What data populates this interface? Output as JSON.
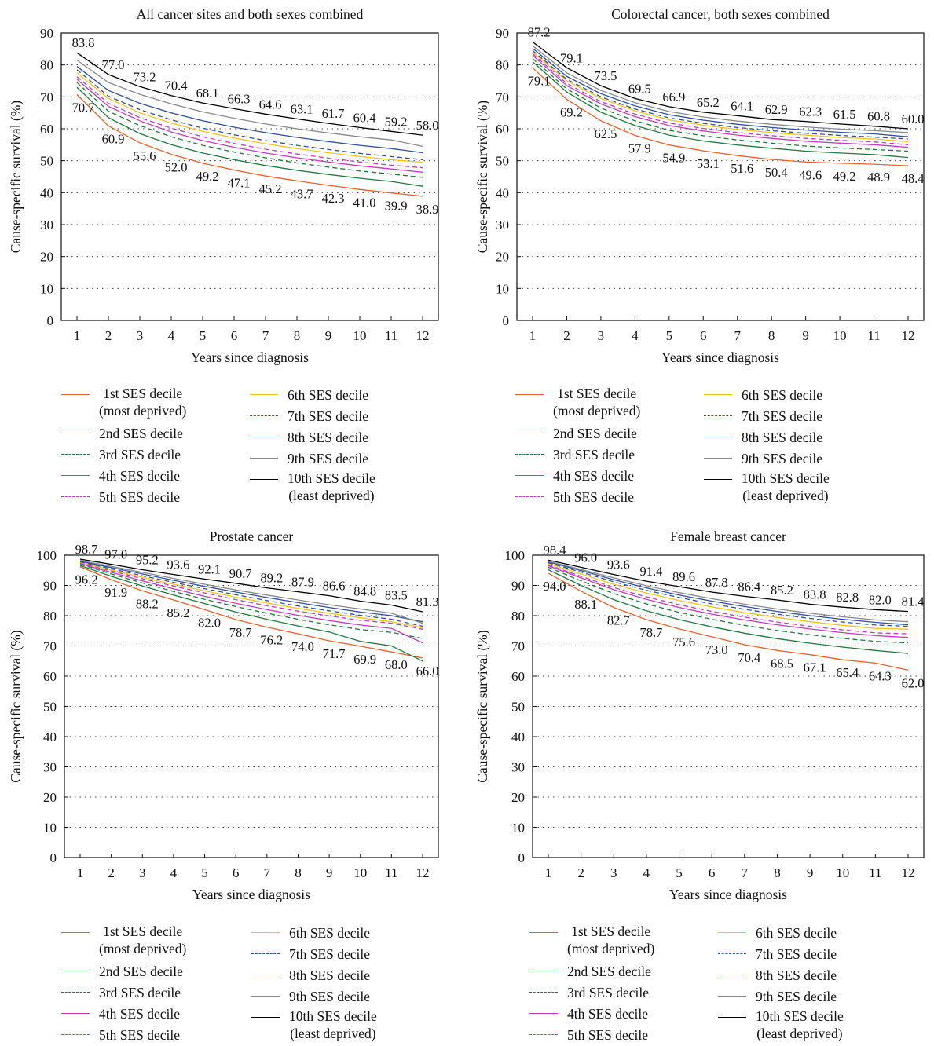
{
  "legend_items": [
    {
      "text": "1st SES decile",
      "sub": "(most deprived)",
      "color": "#e8612c",
      "dash": false
    },
    {
      "text": "2nd SES decile",
      "sub": "",
      "color": "#1f7a3c",
      "dash": false
    },
    {
      "text": "3rd SES decile",
      "sub": "",
      "color": "#1f7a3c",
      "dash": true
    },
    {
      "text": "4th SES decile",
      "sub": "",
      "color": "#c13cc1",
      "dash": false
    },
    {
      "text": "5th SES decile",
      "sub": "",
      "color": "#c13cc1",
      "dash": true
    },
    {
      "text": "6th SES decile",
      "sub": "",
      "color": "#f0c419",
      "dash": false
    },
    {
      "text": "7th SES decile",
      "sub": "",
      "color": "#2f4fa0",
      "dash": true
    },
    {
      "text": "8th SES decile",
      "sub": "",
      "color": "#2f4fa0",
      "dash": false
    },
    {
      "text": "9th SES decile",
      "sub": "",
      "color": "#8a8a8a",
      "dash": false
    },
    {
      "text": "10th SES decile",
      "sub": "(least deprived)",
      "color": "#000000",
      "dash": false
    }
  ],
  "chart_data": [
    {
      "type": "line",
      "title": "All cancer sites and both sexes combined",
      "xlabel": "Years since diagnosis",
      "ylabel": "Cause-specific survival (%)",
      "x": [
        1,
        2,
        3,
        4,
        5,
        6,
        7,
        8,
        9,
        10,
        11,
        12
      ],
      "ylim": [
        0,
        90
      ],
      "yticks": [
        0,
        10,
        20,
        30,
        40,
        50,
        60,
        70,
        80,
        90
      ],
      "grid": "horizontal dotted",
      "labeled_series": [
        "1st SES decile",
        "10th SES decile"
      ],
      "series": [
        {
          "name": "1st SES decile",
          "values": [
            70.7,
            60.9,
            55.6,
            52.0,
            49.2,
            47.1,
            45.2,
            43.7,
            42.3,
            41.0,
            39.9,
            38.9
          ]
        },
        {
          "name": "2nd SES decile",
          "values": [
            73.0,
            63.5,
            58.5,
            55.0,
            52.4,
            50.3,
            48.5,
            47.0,
            45.7,
            44.5,
            43.5,
            42.0
          ]
        },
        {
          "name": "3rd SES decile",
          "values": [
            74.5,
            65.5,
            61.0,
            57.5,
            54.8,
            52.7,
            50.9,
            49.3,
            48.0,
            46.8,
            45.8,
            44.8
          ]
        },
        {
          "name": "4th SES decile",
          "values": [
            75.5,
            67.0,
            62.5,
            59.0,
            56.3,
            54.2,
            52.4,
            50.9,
            49.6,
            48.4,
            47.4,
            46.4
          ]
        },
        {
          "name": "5th SES decile",
          "values": [
            76.3,
            68.0,
            63.5,
            60.2,
            57.5,
            55.4,
            53.6,
            52.1,
            50.8,
            49.6,
            48.6,
            47.8
          ]
        },
        {
          "name": "6th SES decile",
          "values": [
            77.5,
            69.5,
            65.0,
            61.8,
            59.2,
            57.1,
            55.3,
            53.8,
            52.5,
            51.3,
            50.3,
            49.5
          ]
        },
        {
          "name": "7th SES decile",
          "values": [
            78.5,
            70.2,
            66.0,
            62.8,
            60.2,
            58.1,
            56.3,
            54.8,
            53.5,
            52.3,
            51.3,
            50.3
          ]
        },
        {
          "name": "8th SES decile",
          "values": [
            79.5,
            72.0,
            68.0,
            65.0,
            62.5,
            60.5,
            58.8,
            57.3,
            56.0,
            54.8,
            53.8,
            52.5
          ]
        },
        {
          "name": "9th SES decile",
          "values": [
            81.5,
            74.5,
            70.8,
            67.8,
            65.3,
            63.3,
            61.5,
            60.0,
            58.7,
            57.5,
            56.5,
            54.5
          ]
        },
        {
          "name": "10th SES decile",
          "values": [
            83.8,
            77.0,
            73.2,
            70.4,
            68.1,
            66.3,
            64.6,
            63.1,
            61.7,
            60.4,
            59.2,
            58.0
          ]
        }
      ]
    },
    {
      "type": "line",
      "title": "Colorectal cancer, both sexes combined",
      "xlabel": "Years since diagnosis",
      "ylabel": "Cause-specific survival (%)",
      "x": [
        1,
        2,
        3,
        4,
        5,
        6,
        7,
        8,
        9,
        10,
        11,
        12
      ],
      "ylim": [
        0,
        90
      ],
      "yticks": [
        0,
        10,
        20,
        30,
        40,
        50,
        60,
        70,
        80,
        90
      ],
      "grid": "horizontal dotted",
      "labeled_series": [
        "1st SES decile",
        "10th SES decile"
      ],
      "series": [
        {
          "name": "1st SES decile",
          "values": [
            79.1,
            69.2,
            62.5,
            57.9,
            54.9,
            53.1,
            51.6,
            50.4,
            49.6,
            49.2,
            48.9,
            48.4
          ]
        },
        {
          "name": "2nd SES decile",
          "values": [
            81.0,
            71.5,
            65.2,
            61.0,
            58.0,
            56.2,
            54.9,
            53.9,
            53.0,
            52.4,
            51.9,
            51.0
          ]
        },
        {
          "name": "3rd SES decile",
          "values": [
            82.0,
            72.5,
            66.5,
            62.5,
            59.5,
            57.8,
            56.5,
            55.5,
            54.6,
            54.0,
            53.5,
            53.0
          ]
        },
        {
          "name": "4th SES decile",
          "values": [
            83.0,
            73.5,
            67.8,
            63.8,
            61.0,
            59.3,
            58.0,
            57.0,
            56.1,
            55.5,
            55.0,
            54.2
          ]
        },
        {
          "name": "5th SES decile",
          "values": [
            83.5,
            74.2,
            68.5,
            64.6,
            61.8,
            60.1,
            58.8,
            57.8,
            57.0,
            56.4,
            55.9,
            55.0
          ]
        },
        {
          "name": "6th SES decile",
          "values": [
            84.0,
            75.0,
            69.5,
            65.6,
            62.8,
            61.1,
            59.8,
            58.8,
            58.0,
            57.3,
            56.8,
            56.0
          ]
        },
        {
          "name": "7th SES decile",
          "values": [
            84.5,
            75.5,
            70.0,
            66.2,
            63.4,
            61.7,
            60.4,
            59.4,
            58.6,
            57.9,
            57.4,
            56.8
          ]
        },
        {
          "name": "8th SES decile",
          "values": [
            85.2,
            76.4,
            71.0,
            67.2,
            64.4,
            62.7,
            61.4,
            60.4,
            59.6,
            58.9,
            58.4,
            57.5
          ]
        },
        {
          "name": "9th SES decile",
          "values": [
            86.0,
            77.5,
            72.0,
            68.2,
            65.4,
            63.7,
            62.4,
            61.4,
            60.6,
            59.9,
            59.4,
            58.8
          ]
        },
        {
          "name": "10th SES decile",
          "values": [
            87.2,
            79.1,
            73.5,
            69.5,
            66.9,
            65.2,
            64.1,
            62.9,
            62.3,
            61.5,
            60.8,
            60.0
          ]
        }
      ]
    },
    {
      "type": "line",
      "title": "Prostate cancer",
      "xlabel": "Years since diagnosis",
      "ylabel": "Cause-specific survival (%)",
      "x": [
        1,
        2,
        3,
        4,
        5,
        6,
        7,
        8,
        9,
        10,
        11,
        12
      ],
      "ylim": [
        0,
        100
      ],
      "yticks": [
        0,
        10,
        20,
        30,
        40,
        50,
        60,
        70,
        80,
        90,
        100
      ],
      "grid": "horizontal dotted",
      "labeled_series": [
        "1st SES decile",
        "10th SES decile"
      ],
      "series": [
        {
          "name": "1st SES decile",
          "values": [
            96.2,
            91.9,
            88.2,
            85.2,
            82.0,
            78.7,
            76.2,
            74.0,
            71.7,
            69.9,
            68.0,
            66.0
          ]
        },
        {
          "name": "2nd SES decile",
          "values": [
            96.6,
            93.0,
            89.8,
            86.8,
            84.0,
            81.2,
            78.8,
            76.6,
            74.6,
            71.5,
            70.0,
            65.0
          ]
        },
        {
          "name": "3rd SES decile",
          "values": [
            97.0,
            93.8,
            90.8,
            88.0,
            85.4,
            83.0,
            80.8,
            78.8,
            77.0,
            75.4,
            74.5,
            72.5
          ]
        },
        {
          "name": "4th SES decile",
          "values": [
            97.2,
            94.3,
            91.5,
            88.9,
            86.4,
            84.1,
            82.0,
            80.1,
            78.4,
            76.9,
            75.8,
            71.0
          ]
        },
        {
          "name": "5th SES decile",
          "values": [
            97.4,
            94.8,
            92.2,
            89.8,
            87.5,
            85.3,
            83.3,
            81.5,
            79.9,
            78.5,
            77.5,
            75.5
          ]
        },
        {
          "name": "6th SES decile",
          "values": [
            97.6,
            95.1,
            92.7,
            90.4,
            88.2,
            86.1,
            84.2,
            82.4,
            80.8,
            79.3,
            78.0,
            76.0
          ]
        },
        {
          "name": "7th SES decile",
          "values": [
            97.8,
            95.5,
            93.2,
            91.0,
            88.9,
            86.9,
            85.0,
            83.2,
            81.6,
            80.1,
            78.8,
            76.5
          ]
        },
        {
          "name": "8th SES decile",
          "values": [
            98.0,
            95.9,
            93.8,
            91.7,
            89.7,
            87.8,
            86.0,
            84.3,
            82.7,
            81.2,
            80.0,
            78.0
          ]
        },
        {
          "name": "9th SES decile",
          "values": [
            98.3,
            96.3,
            94.3,
            92.3,
            90.4,
            88.5,
            86.8,
            85.2,
            83.6,
            82.2,
            80.8,
            77.5
          ]
        },
        {
          "name": "10th SES decile",
          "values": [
            98.7,
            97.0,
            95.2,
            93.6,
            92.1,
            90.7,
            89.2,
            87.9,
            86.6,
            84.8,
            83.5,
            81.3
          ]
        }
      ]
    },
    {
      "type": "line",
      "title": "Female breast cancer",
      "xlabel": "Years since diagnosis",
      "ylabel": "Cause-specific survival (%)",
      "x": [
        1,
        2,
        3,
        4,
        5,
        6,
        7,
        8,
        9,
        10,
        11,
        12
      ],
      "ylim": [
        0,
        100
      ],
      "yticks": [
        0,
        10,
        20,
        30,
        40,
        50,
        60,
        70,
        80,
        90,
        100
      ],
      "grid": "horizontal dotted",
      "labeled_series": [
        "1st SES decile",
        "10th SES decile"
      ],
      "series": [
        {
          "name": "1st SES decile",
          "values": [
            94.0,
            88.1,
            82.7,
            78.7,
            75.6,
            73.0,
            70.4,
            68.5,
            67.1,
            65.4,
            64.3,
            62.0
          ]
        },
        {
          "name": "2nd SES decile",
          "values": [
            95.2,
            90.0,
            85.3,
            81.6,
            78.7,
            76.3,
            74.2,
            72.4,
            70.9,
            69.6,
            68.5,
            67.5
          ]
        },
        {
          "name": "3rd SES decile",
          "values": [
            96.0,
            91.5,
            87.3,
            83.9,
            81.1,
            78.8,
            76.8,
            75.1,
            73.7,
            72.5,
            71.5,
            71.0
          ]
        },
        {
          "name": "4th SES decile",
          "values": [
            96.5,
            92.5,
            88.6,
            85.4,
            82.7,
            80.5,
            78.6,
            77.0,
            75.6,
            74.4,
            73.4,
            72.8
          ]
        },
        {
          "name": "5th SES decile",
          "values": [
            96.8,
            93.0,
            89.3,
            86.2,
            83.6,
            81.4,
            79.5,
            77.9,
            76.5,
            75.3,
            74.3,
            74.0
          ]
        },
        {
          "name": "6th SES decile",
          "values": [
            97.2,
            93.8,
            90.4,
            87.5,
            85.0,
            82.9,
            81.0,
            79.4,
            78.0,
            76.8,
            75.8,
            75.5
          ]
        },
        {
          "name": "7th SES decile",
          "values": [
            97.5,
            94.4,
            91.2,
            88.4,
            86.0,
            83.9,
            82.1,
            80.5,
            79.1,
            77.9,
            76.9,
            76.5
          ]
        },
        {
          "name": "8th SES decile",
          "values": [
            97.8,
            94.9,
            91.9,
            89.2,
            86.8,
            84.8,
            83.0,
            81.4,
            80.0,
            78.8,
            77.8,
            77.0
          ]
        },
        {
          "name": "9th SES decile",
          "values": [
            98.0,
            95.3,
            92.5,
            89.9,
            87.6,
            85.6,
            83.8,
            82.2,
            80.8,
            79.6,
            78.6,
            78.0
          ]
        },
        {
          "name": "10th SES decile",
          "values": [
            98.4,
            96.0,
            93.6,
            91.4,
            89.6,
            87.8,
            86.4,
            85.2,
            83.8,
            82.8,
            82.0,
            81.4
          ]
        }
      ]
    }
  ]
}
